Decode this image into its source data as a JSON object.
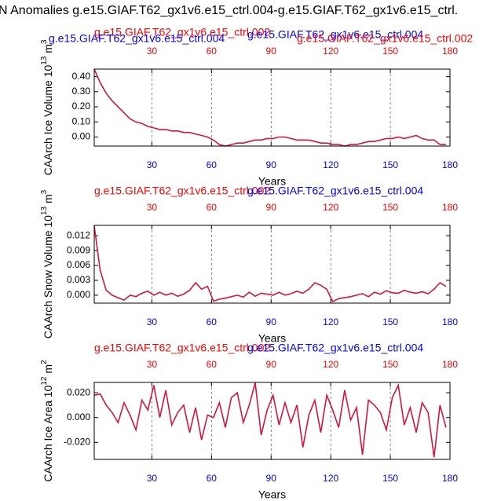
{
  "title": "N Anomalies g.e15.GIAF.T62_gx1v6.e15_ctrl.004-g.e15.GIAF.T62_gx1v6.e15_ctrl.",
  "chart_data": [
    {
      "type": "line",
      "color": "#d4163e",
      "xlabel": "Years",
      "ylabel": {
        "text": "CAArch Ice Volume 10",
        "exp": "13",
        "unit": " m",
        "unit_exp": "3"
      },
      "labels": [
        {
          "text": "g.e15.GIAF.T62_gx1v6.e15_ctrl.002",
          "color": "#ff0000"
        },
        {
          "text": "g.e15.GIAF.T62_gx1v6.e15_ctrl.004",
          "color": "#0000ff"
        },
        {
          "text": "g.e15.GIAF.T62_gx1v6.e15_ctrl.004",
          "color": "#0000ff"
        },
        {
          "text": "g.e15.GIAF.T62_gx1v6.e15_ctrl.002",
          "color": "#ff0000"
        }
      ],
      "xlim": [
        1,
        180
      ],
      "xticks": [
        30,
        60,
        90,
        120,
        150,
        180
      ],
      "ylim": [
        -0.06,
        0.45
      ],
      "yticks": [
        {
          "value": 0.4,
          "label": "0.40"
        },
        {
          "value": 0.3,
          "label": "0.30"
        },
        {
          "value": 0.2,
          "label": "0.20"
        },
        {
          "value": 0.1,
          "label": "0.10"
        },
        {
          "value": 0,
          "label": "0.00"
        }
      ],
      "x": [
        1,
        4,
        7,
        10,
        13,
        16,
        19,
        22,
        25,
        28,
        31,
        34,
        37,
        40,
        43,
        46,
        49,
        52,
        55,
        58,
        61,
        64,
        67,
        70,
        73,
        76,
        79,
        82,
        85,
        88,
        91,
        94,
        97,
        100,
        103,
        106,
        109,
        112,
        115,
        118,
        121,
        124,
        127,
        130,
        133,
        136,
        139,
        142,
        145,
        148,
        151,
        154,
        157,
        160,
        163,
        166,
        169,
        172,
        175,
        178
      ],
      "values": [
        0.45,
        0.36,
        0.29,
        0.24,
        0.2,
        0.16,
        0.12,
        0.1,
        0.09,
        0.07,
        0.06,
        0.05,
        0.05,
        0.04,
        0.04,
        0.03,
        0.03,
        0.02,
        0.01,
        0.0,
        -0.02,
        -0.05,
        -0.06,
        -0.05,
        -0.04,
        -0.04,
        -0.03,
        -0.02,
        -0.02,
        -0.01,
        -0.01,
        0.0,
        0.0,
        -0.01,
        -0.02,
        -0.02,
        -0.02,
        -0.03,
        -0.04,
        -0.04,
        -0.05,
        -0.05,
        -0.06,
        -0.05,
        -0.05,
        -0.04,
        -0.03,
        -0.03,
        -0.02,
        -0.01,
        -0.01,
        0.0,
        -0.01,
        0.0,
        0.01,
        -0.01,
        -0.02,
        -0.02,
        -0.05,
        -0.05
      ]
    },
    {
      "type": "line",
      "color": "#d4163e",
      "xlabel": "Years",
      "ylabel": {
        "text": "CAArch Snow Volume 10",
        "exp": "13",
        "unit": " m",
        "unit_exp": "3"
      },
      "labels": [
        {
          "text": "g.e15.GIAF.T62_gx1v6.e15_ctrl.002",
          "color": "#ff0000"
        },
        {
          "text": "g.e15.GIAF.T62_gx1v6.e15_ctrl.004",
          "color": "#0000ff"
        }
      ],
      "xlim": [
        1,
        180
      ],
      "xticks": [
        30,
        60,
        90,
        120,
        150,
        180
      ],
      "ylim": [
        -0.0016,
        0.0141
      ],
      "yticks": [
        0.012,
        0.009,
        0.006,
        0.003,
        {
          "value": 0,
          "label": "0.000"
        }
      ],
      "x": [
        1,
        4,
        7,
        10,
        13,
        16,
        19,
        22,
        25,
        28,
        31,
        34,
        37,
        40,
        43,
        46,
        49,
        52,
        55,
        58,
        61,
        64,
        67,
        70,
        73,
        76,
        79,
        82,
        85,
        88,
        91,
        94,
        97,
        100,
        103,
        106,
        109,
        112,
        115,
        118,
        121,
        124,
        127,
        130,
        133,
        136,
        139,
        142,
        145,
        148,
        151,
        154,
        157,
        160,
        163,
        166,
        169,
        172,
        175,
        178
      ],
      "values": [
        0.014,
        0.005,
        0.001,
        0.0,
        -0.0005,
        -0.001,
        0.0,
        -0.0003,
        0.0004,
        0.0008,
        0.0,
        0.0006,
        0.0,
        0.0004,
        -0.0002,
        0.0002,
        0.001,
        0.0025,
        0.0012,
        0.0018,
        -0.0012,
        -0.0008,
        -0.0006,
        -0.0003,
        0.0,
        -0.0004,
        0.0006,
        -0.0002,
        0.0004,
        0.0002,
        0.0,
        0.0006,
        0.0,
        0.0003,
        0.0008,
        0.0004,
        0.0012,
        0.0025,
        0.002,
        0.0012,
        -0.0013,
        -0.0007,
        -0.0005,
        -0.0003,
        0.0,
        0.0003,
        -0.0003,
        0.0006,
        0.0002,
        0.0009,
        0.0005,
        0.0004,
        0.001,
        0.0006,
        0.0004,
        0.0007,
        0.0003,
        0.0012,
        0.0025,
        0.0018
      ]
    },
    {
      "type": "line",
      "color": "#d4163e",
      "xlabel": "Years",
      "ylabel": {
        "text": "CAArch Ice Area 10",
        "exp": "12",
        "unit": " m",
        "unit_exp": "2"
      },
      "labels": [
        {
          "text": "g.e15.GIAF.T62_gx1v6.e15_ctrl.002",
          "color": "#ff0000"
        },
        {
          "text": "g.e15.GIAF.T62_gx1v6.e15_ctrl.004",
          "color": "#0000ff"
        }
      ],
      "xlim": [
        1,
        180
      ],
      "xticks": [
        30,
        60,
        90,
        120,
        150,
        180
      ],
      "ylim": [
        -0.0337,
        0.0283
      ],
      "yticks": [
        {
          "value": 0.02,
          "label": "0.020"
        },
        {
          "value": 0,
          "label": "0.000"
        },
        {
          "value": -0.02,
          "label": "-0.020"
        }
      ],
      "x": [
        1,
        4,
        7,
        10,
        13,
        16,
        19,
        22,
        25,
        28,
        31,
        34,
        37,
        40,
        43,
        46,
        49,
        52,
        55,
        58,
        61,
        64,
        67,
        70,
        73,
        76,
        79,
        82,
        85,
        88,
        91,
        94,
        97,
        100,
        103,
        106,
        109,
        112,
        115,
        118,
        121,
        124,
        127,
        130,
        133,
        136,
        139,
        142,
        145,
        148,
        151,
        154,
        157,
        160,
        163,
        166,
        169,
        172,
        175,
        178
      ],
      "values": [
        0.018,
        0.019,
        0.01,
        0.004,
        -0.004,
        0.012,
        0.002,
        -0.01,
        0.014,
        0.006,
        0.026,
        0.0,
        0.022,
        -0.006,
        0.004,
        0.01,
        -0.012,
        0.008,
        -0.018,
        0.002,
        0.0,
        0.012,
        -0.008,
        0.016,
        0.02,
        -0.004,
        0.01,
        0.028,
        -0.014,
        0.006,
        0.018,
        -0.006,
        0.012,
        -0.004,
        0.01,
        -0.024,
        0.002,
        0.014,
        -0.012,
        0.018,
        0.006,
        -0.008,
        0.022,
        -0.002,
        0.008,
        -0.03,
        0.014,
        0.01,
        0.004,
        -0.01,
        0.016,
        0.026,
        -0.006,
        0.008,
        -0.012,
        0.012,
        0.004,
        -0.032,
        0.01,
        -0.008
      ]
    }
  ]
}
